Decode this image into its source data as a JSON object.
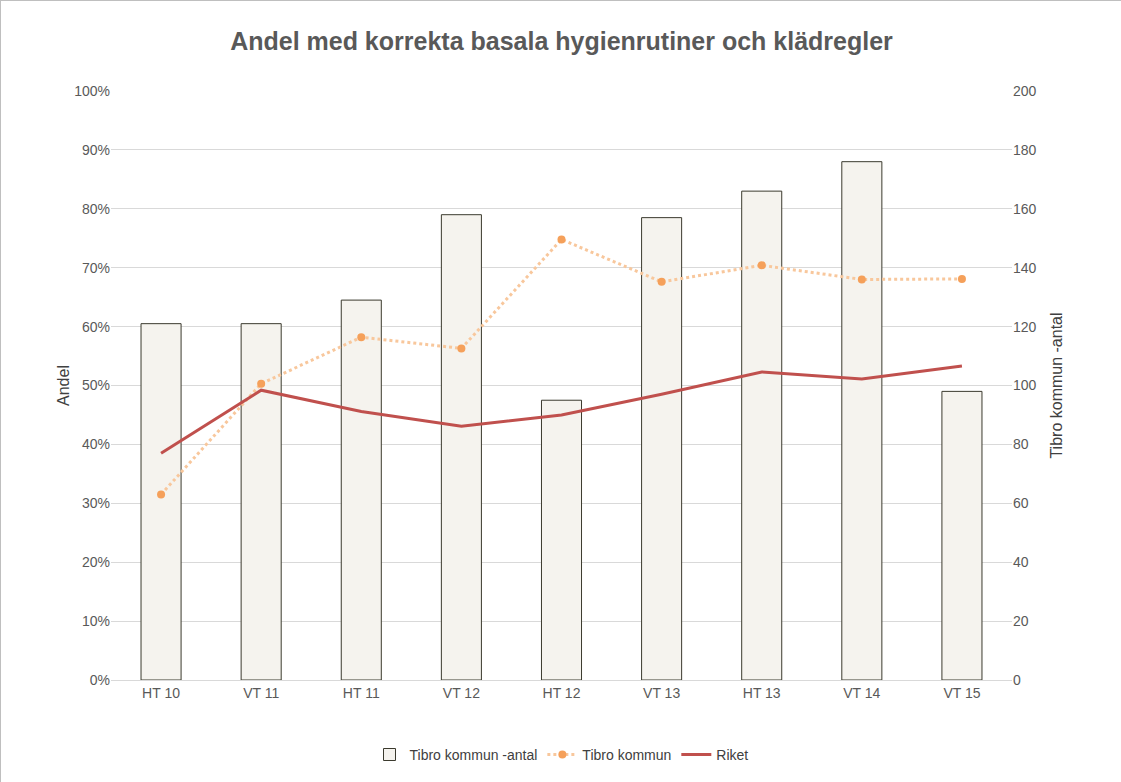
{
  "chart_data": {
    "type": "bar",
    "title": "Andel med korrekta basala hygienrutiner och klädregler",
    "y_label": "Andel",
    "y2_label": "Tibro kommun -antal",
    "categories": [
      "HT 10",
      "VT 11",
      "HT 11",
      "VT 12",
      "HT 12",
      "VT 13",
      "HT 13",
      "VT 14",
      "VT 15"
    ],
    "series": [
      {
        "name": "Tibro kommun -antal",
        "type": "bar",
        "axis": "y2",
        "color": "#f5f3ee",
        "values": [
          121,
          121,
          129,
          158,
          95,
          157,
          166,
          176,
          98
        ]
      },
      {
        "name": "Tibro kommun",
        "type": "line",
        "color": "#f8c79c",
        "marker": "circle",
        "line_style": "dotted",
        "values": [
          31.5,
          50.3,
          58.2,
          56.3,
          74.8,
          67.6,
          70.4,
          68.0,
          68.1
        ]
      },
      {
        "name": "Riket",
        "type": "line",
        "color": "#c0504d",
        "line_style": "solid",
        "values": [
          38.5,
          49.2,
          45.6,
          43.1,
          45.0,
          48.5,
          52.3,
          51.1,
          53.3
        ]
      }
    ],
    "ylim": [
      0,
      100
    ],
    "yticks": [
      {
        "value": 0,
        "label": "0%"
      },
      {
        "value": 10,
        "label": "10%"
      },
      {
        "value": 20,
        "label": "20%"
      },
      {
        "value": 30,
        "label": "30%"
      },
      {
        "value": 40,
        "label": "40%"
      },
      {
        "value": 50,
        "label": "50%"
      },
      {
        "value": 60,
        "label": "60%"
      },
      {
        "value": 70,
        "label": "70%"
      },
      {
        "value": 80,
        "label": "80%"
      },
      {
        "value": 90,
        "label": "90%"
      },
      {
        "value": 100,
        "label": "100%"
      }
    ],
    "y2lim": [
      0,
      200
    ],
    "y2ticks": [
      0,
      20,
      40,
      60,
      80,
      100,
      120,
      140,
      160,
      180,
      200
    ],
    "grid": true,
    "legend": "bottom"
  }
}
